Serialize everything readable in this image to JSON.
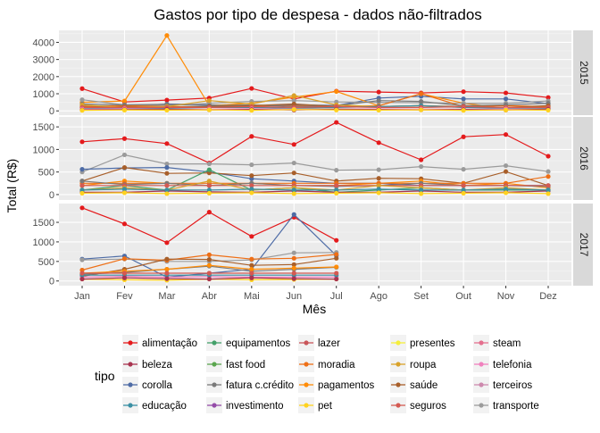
{
  "chart_data": {
    "type": "line",
    "title": "Gastos por tipo de despesa - dados não-filtrados",
    "xlabel": "Mês",
    "ylabel": "Total (R$)",
    "categories": [
      "Jan",
      "Fev",
      "Mar",
      "Abr",
      "Mai",
      "Jun",
      "Jul",
      "Ago",
      "Set",
      "Out",
      "Nov",
      "Dez"
    ],
    "grid": true,
    "legend": {
      "title": "tipo",
      "placement": "bottom",
      "entries": [
        {
          "name": "alimentação",
          "color": "#e41a1c"
        },
        {
          "name": "beleza",
          "color": "#a8334f"
        },
        {
          "name": "corolla",
          "color": "#4e6ca6"
        },
        {
          "name": "educação",
          "color": "#3a8fa3"
        },
        {
          "name": "equipamentos",
          "color": "#44a06a"
        },
        {
          "name": "fast food",
          "color": "#5aa54e"
        },
        {
          "name": "fatura c.crédito",
          "color": "#7a7a7a"
        },
        {
          "name": "investimento",
          "color": "#944ca8"
        },
        {
          "name": "lazer",
          "color": "#c9565a"
        },
        {
          "name": "moradia",
          "color": "#ee6f16"
        },
        {
          "name": "pagamentos",
          "color": "#ff8c07"
        },
        {
          "name": "pet",
          "color": "#ffd21f"
        },
        {
          "name": "presentes",
          "color": "#f5ee3c"
        },
        {
          "name": "roupa",
          "color": "#d9a22a"
        },
        {
          "name": "saúde",
          "color": "#a85f2a"
        },
        {
          "name": "seguros",
          "color": "#d45a52"
        },
        {
          "name": "steam",
          "color": "#e4708f"
        },
        {
          "name": "telefonia",
          "color": "#f081bd"
        },
        {
          "name": "terceiros",
          "color": "#cd89ad"
        },
        {
          "name": "transporte",
          "color": "#9b9b9b"
        }
      ]
    },
    "panels": [
      {
        "label": "2015",
        "ylim": [
          -250,
          4700
        ],
        "yticks": [
          0,
          1000,
          2000,
          3000,
          4000
        ],
        "series": [
          {
            "name": "alimentação",
            "values": [
              1300,
              520,
              630,
              750,
              1310,
              700,
              1150,
              1100,
              1050,
              1120,
              1050,
              780
            ]
          },
          {
            "name": "corolla",
            "values": [
              300,
              250,
              400,
              350,
              300,
              350,
              320,
              750,
              850,
              700,
              700,
              420
            ]
          },
          {
            "name": "pagamentos",
            "values": [
              500,
              580,
              4400,
              300,
              450,
              800,
              1130,
              300,
              1000,
              450,
              150,
              250
            ]
          },
          {
            "name": "transporte",
            "values": [
              650,
              350,
              300,
              450,
              550,
              600,
              520,
              500,
              480,
              450,
              450,
              580
            ]
          },
          {
            "name": "moradia",
            "values": [
              250,
              300,
              250,
              230,
              280,
              300,
              250,
              300,
              1000,
              250,
              300,
              250
            ]
          },
          {
            "name": "fatura c.crédito",
            "values": [
              400,
              350,
              380,
              300,
              350,
              250,
              300,
              600,
              550,
              300,
              350,
              450
            ]
          },
          {
            "name": "saúde",
            "values": [
              200,
              250,
              200,
              250,
              300,
              400,
              250,
              250,
              300,
              250,
              200,
              300
            ]
          },
          {
            "name": "roupa",
            "values": [
              350,
              200,
              250,
              600,
              400,
              900,
              350,
              250,
              300,
              200,
              200,
              200
            ]
          },
          {
            "name": "educação",
            "values": [
              150,
              150,
              150,
              200,
              200,
              150,
              200,
              250,
              300,
              200,
              150,
              150
            ]
          },
          {
            "name": "presentes",
            "values": [
              100,
              50,
              50,
              100,
              50,
              100,
              100,
              50,
              100,
              50,
              100,
              100
            ]
          },
          {
            "name": "seguros",
            "values": [
              200,
              200,
              200,
              200,
              250,
              200,
              250,
              200,
              200,
              250,
              200,
              200
            ]
          },
          {
            "name": "telefonia",
            "values": [
              100,
              120,
              100,
              100,
              120,
              100,
              100,
              110,
              100,
              100,
              110,
              100
            ]
          },
          {
            "name": "beleza",
            "values": [
              50,
              80,
              100,
              60,
              80,
              50,
              100,
              80,
              60,
              80,
              50,
              100
            ]
          },
          {
            "name": "pet",
            "values": [
              30,
              50,
              40,
              60,
              30,
              80,
              50,
              40,
              60,
              30,
              50,
              40
            ]
          }
        ]
      },
      {
        "label": "2016",
        "ylim": [
          -120,
          1720
        ],
        "yticks": [
          0,
          500,
          1000,
          1500
        ],
        "series": [
          {
            "name": "alimentação",
            "values": [
              1170,
              1240,
              1130,
              700,
              1290,
              1110,
              1600,
              1150,
              770,
              1280,
              1330,
              850
            ]
          },
          {
            "name": "transporte",
            "values": [
              500,
              880,
              680,
              680,
              660,
              700,
              540,
              550,
              620,
              560,
              640,
              510
            ]
          },
          {
            "name": "corolla",
            "values": [
              560,
              590,
              600,
              500,
              350,
              300,
              250,
              250,
              200,
              200,
              200,
              200
            ]
          },
          {
            "name": "saúde",
            "values": [
              300,
              600,
              470,
              480,
              420,
              480,
              300,
              360,
              350,
              250,
              510,
              200
            ]
          },
          {
            "name": "equipamentos",
            "values": [
              100,
              200,
              100,
              550,
              100,
              150,
              50,
              100,
              150,
              100,
              100,
              100
            ]
          },
          {
            "name": "pagamentos",
            "values": [
              200,
              300,
              250,
              200,
              250,
              200,
              200,
              250,
              300,
              200,
              250,
              150
            ]
          },
          {
            "name": "moradia",
            "values": [
              250,
              250,
              250,
              250,
              250,
              250,
              250,
              250,
              250,
              250,
              250,
              400
            ]
          },
          {
            "name": "fatura c.crédito",
            "values": [
              300,
              220,
              250,
              200,
              250,
              200,
              180,
              200,
              250,
              200,
              200,
              180
            ]
          },
          {
            "name": "seguros",
            "values": [
              200,
              200,
              200,
              200,
              200,
              200,
              200,
              200,
              200,
              200,
              200,
              200
            ]
          },
          {
            "name": "roupa",
            "values": [
              100,
              150,
              100,
              300,
              100,
              150,
              100,
              200,
              150,
              100,
              150,
              100
            ]
          },
          {
            "name": "beleza",
            "values": [
              50,
              50,
              80,
              60,
              50,
              80,
              50,
              50,
              80,
              50,
              50,
              80
            ]
          },
          {
            "name": "educação",
            "values": [
              100,
              120,
              100,
              100,
              120,
              100,
              100,
              120,
              100,
              100,
              120,
              100
            ]
          },
          {
            "name": "pet",
            "values": [
              30,
              40,
              20,
              30,
              40,
              20,
              30,
              40,
              20,
              30,
              40,
              20
            ]
          }
        ]
      },
      {
        "label": "2017",
        "ylim": [
          -120,
          1980
        ],
        "yticks": [
          0,
          500,
          1000,
          1500
        ],
        "series": [
          {
            "name": "alimentação",
            "values": [
              1870,
              1460,
              980,
              1760,
              1140,
              1630,
              1040
            ]
          },
          {
            "name": "corolla",
            "values": [
              560,
              640,
              100,
              200,
              300,
              1700,
              650
            ]
          },
          {
            "name": "transporte",
            "values": [
              540,
              560,
              500,
              500,
              540,
              720,
              730
            ]
          },
          {
            "name": "moradia",
            "values": [
              280,
              570,
              530,
              670,
              560,
              580,
              680
            ]
          },
          {
            "name": "saúde",
            "values": [
              120,
              300,
              560,
              550,
              400,
              420,
              580
            ]
          },
          {
            "name": "fatura c.crédito",
            "values": [
              170,
              220,
              300,
              380,
              250,
              300,
              350
            ]
          },
          {
            "name": "pagamentos",
            "values": [
              200,
              250,
              300,
              400,
              300,
              330,
              360
            ]
          },
          {
            "name": "pet",
            "values": [
              50,
              30,
              20,
              50,
              30,
              40,
              50
            ]
          },
          {
            "name": "telefonia",
            "values": [
              100,
              120,
              100,
              110,
              100,
              100,
              100
            ]
          },
          {
            "name": "educação",
            "values": [
              150,
              150,
              150,
              150,
              150,
              150,
              150
            ]
          },
          {
            "name": "beleza",
            "values": [
              50,
              80,
              60,
              50,
              80,
              60,
              50
            ]
          },
          {
            "name": "seguros",
            "values": [
              200,
              200,
              200,
              200,
              200,
              200,
              200
            ]
          }
        ]
      }
    ]
  }
}
